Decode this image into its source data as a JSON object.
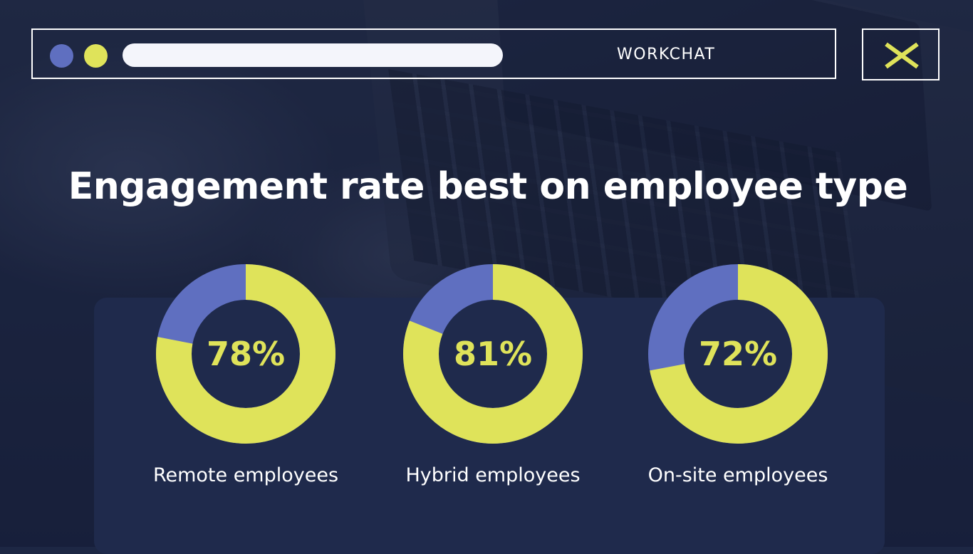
{
  "window": {
    "brand": "WORKCHAT"
  },
  "colors": {
    "accent_yellow": "#dfe35a",
    "accent_blue": "#5f6fc0",
    "panel": "#1f2a4c",
    "text": "#ffffff"
  },
  "icons": {
    "close": "x-icon"
  },
  "chart_data": {
    "type": "pie",
    "title": "Engagement rate best on employee type",
    "categories": [
      "Remote employees",
      "Hybrid employees",
      "On-site employees"
    ],
    "values": [
      78,
      81,
      72
    ],
    "value_labels": [
      "78%",
      "81%",
      "72%"
    ],
    "unit": "%",
    "max": 100
  }
}
